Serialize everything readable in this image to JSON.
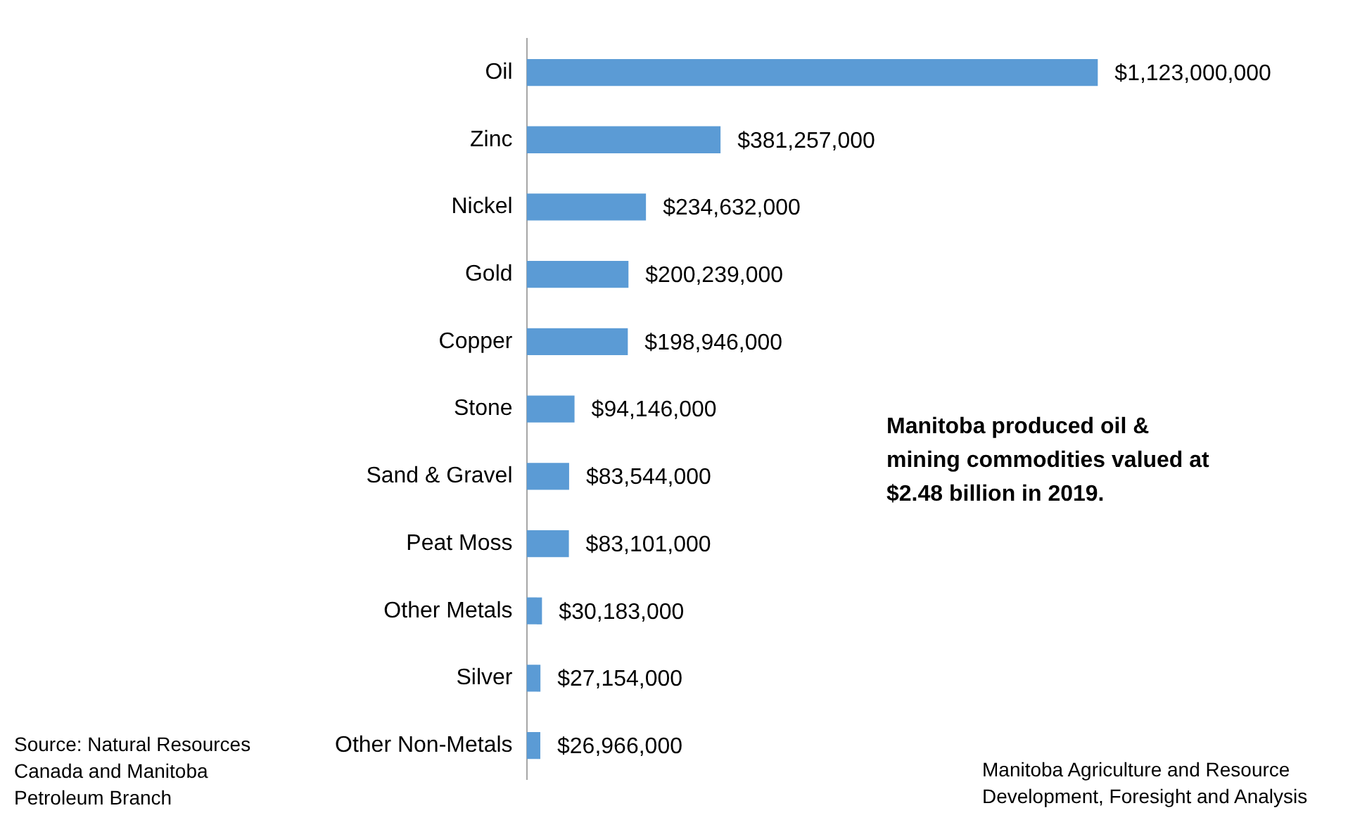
{
  "chart_data": {
    "type": "bar",
    "orientation": "horizontal",
    "categories": [
      "Oil",
      "Zinc",
      "Nickel",
      "Gold",
      "Copper",
      "Stone",
      "Sand & Gravel",
      "Peat Moss",
      "Other Metals",
      "Silver",
      "Other Non-Metals"
    ],
    "values": [
      1123000000,
      381257000,
      234632000,
      200239000,
      198946000,
      94146000,
      83544000,
      83101000,
      30183000,
      27154000,
      26966000
    ],
    "value_labels": [
      "$1,123,000,000",
      "$381,257,000",
      "$234,632,000",
      "$200,239,000",
      "$198,946,000",
      "$94,146,000",
      "$83,544,000",
      "$83,101,000",
      "$30,183,000",
      "$27,154,000",
      "$26,966,000"
    ],
    "color": "#5b9bd5",
    "legend": false,
    "annotations": [
      "Manitoba produced oil & mining commodities valued at $2.48 billion in 2019.",
      "Source: Natural Resources Canada and Manitoba Petroleum Branch",
      "Manitoba Agriculture and Resource Development, Foresight and Analysis"
    ]
  }
}
